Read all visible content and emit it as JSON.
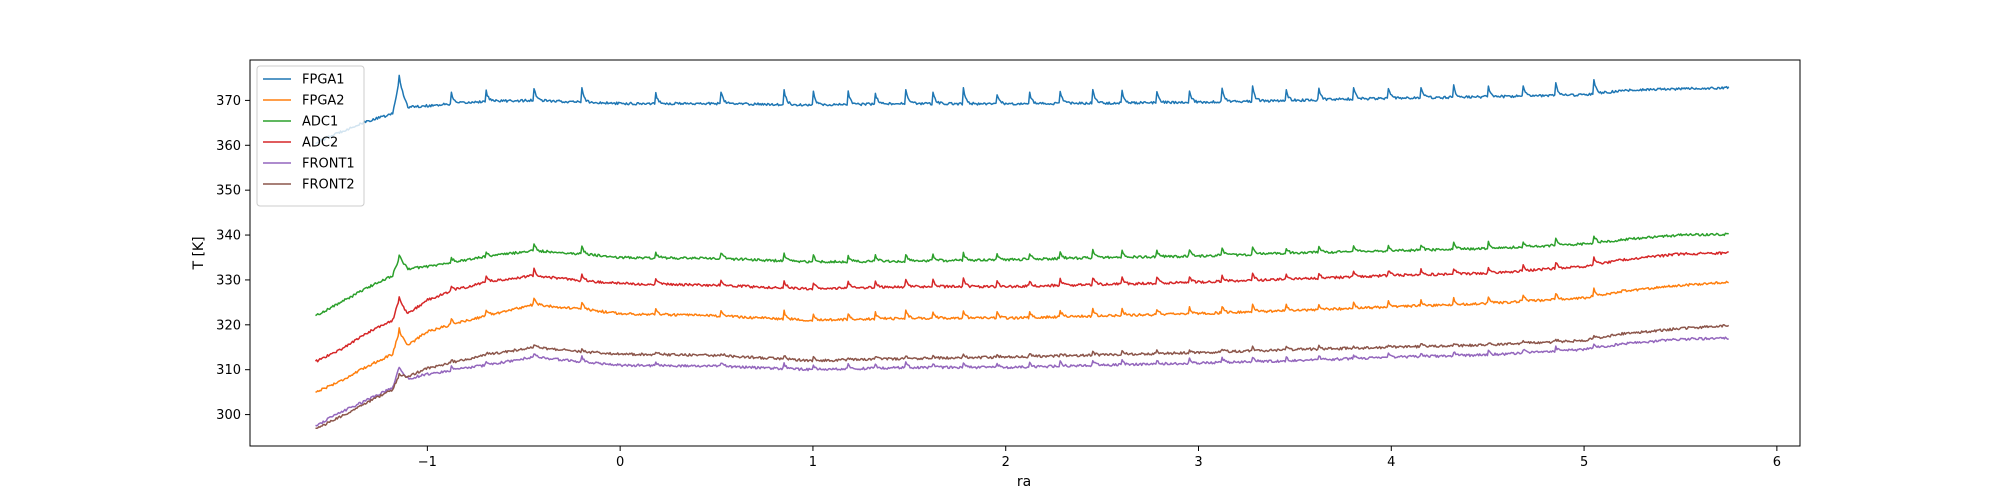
{
  "chart_data": {
    "type": "line",
    "title": "",
    "xlabel": "ra",
    "ylabel": "T [K]",
    "xlim": [
      -1.92,
      6.12
    ],
    "ylim": [
      293,
      379
    ],
    "xticks": [
      -1,
      0,
      1,
      2,
      3,
      4,
      5,
      6
    ],
    "xtick_labels": [
      "−1",
      "0",
      "1",
      "2",
      "3",
      "4",
      "5",
      "6"
    ],
    "yticks": [
      300,
      310,
      320,
      330,
      340,
      350,
      360,
      370
    ],
    "ytick_labels": [
      "300",
      "310",
      "320",
      "330",
      "340",
      "350",
      "360",
      "370"
    ],
    "grid": false,
    "legend_position": "top-left",
    "spike_x": [
      -1.15,
      -0.88,
      -0.7,
      -0.45,
      -0.2,
      0.18,
      0.52,
      0.85,
      1.0,
      1.18,
      1.32,
      1.48,
      1.62,
      1.78,
      1.95,
      2.12,
      2.28,
      2.45,
      2.6,
      2.78,
      2.95,
      3.12,
      3.28,
      3.45,
      3.62,
      3.8,
      3.98,
      4.15,
      4.32,
      4.5,
      4.68,
      4.85,
      5.05
    ],
    "series": [
      {
        "name": "FPGA1",
        "color": "#1f77b4",
        "spike": 3.5,
        "x": [
          -1.58,
          -1.45,
          -1.3,
          -1.18,
          -1.15,
          -1.1,
          -1.0,
          -0.88,
          -0.7,
          -0.45,
          -0.2,
          0.0,
          0.5,
          1.0,
          1.5,
          2.0,
          2.5,
          3.0,
          3.5,
          4.0,
          4.5,
          5.0,
          5.2,
          5.5,
          5.75
        ],
        "y": [
          360.5,
          363.0,
          365.5,
          367.0,
          373.5,
          368.5,
          368.8,
          369.2,
          369.8,
          370.0,
          369.6,
          369.3,
          369.3,
          369.0,
          369.3,
          369.2,
          369.4,
          369.6,
          370.0,
          370.5,
          370.8,
          371.2,
          372.2,
          372.6,
          372.8
        ]
      },
      {
        "name": "FPGA2",
        "color": "#ff7f0e",
        "spike": 1.8,
        "x": [
          -1.58,
          -1.45,
          -1.3,
          -1.18,
          -1.15,
          -1.1,
          -1.0,
          -0.88,
          -0.7,
          -0.45,
          -0.2,
          0.0,
          0.5,
          1.0,
          1.5,
          2.0,
          2.5,
          3.0,
          3.5,
          4.0,
          4.5,
          5.0,
          5.2,
          5.5,
          5.75
        ],
        "y": [
          305.0,
          307.5,
          311.0,
          313.5,
          318.0,
          315.5,
          318.5,
          320.0,
          322.0,
          324.5,
          323.5,
          322.5,
          322.0,
          321.0,
          321.5,
          321.5,
          322.0,
          322.5,
          323.2,
          324.0,
          324.8,
          326.0,
          327.5,
          328.8,
          329.5
        ]
      },
      {
        "name": "ADC1",
        "color": "#2ca02c",
        "spike": 1.8,
        "x": [
          -1.58,
          -1.45,
          -1.3,
          -1.18,
          -1.15,
          -1.1,
          -1.0,
          -0.88,
          -0.7,
          -0.45,
          -0.2,
          0.0,
          0.5,
          1.0,
          1.5,
          2.0,
          2.5,
          3.0,
          3.5,
          4.0,
          4.5,
          5.0,
          5.2,
          5.5,
          5.75
        ],
        "y": [
          322.0,
          325.0,
          328.5,
          331.0,
          334.5,
          332.5,
          333.0,
          333.8,
          335.2,
          336.5,
          335.8,
          335.0,
          334.8,
          334.0,
          334.2,
          334.5,
          335.0,
          335.3,
          336.0,
          336.5,
          337.0,
          338.0,
          339.0,
          340.0,
          340.2
        ]
      },
      {
        "name": "ADC2",
        "color": "#d62728",
        "spike": 1.8,
        "x": [
          -1.58,
          -1.45,
          -1.3,
          -1.18,
          -1.15,
          -1.1,
          -1.0,
          -0.88,
          -0.7,
          -0.45,
          -0.2,
          0.0,
          0.5,
          1.0,
          1.5,
          2.0,
          2.5,
          3.0,
          3.5,
          4.0,
          4.5,
          5.0,
          5.2,
          5.5,
          5.75
        ],
        "y": [
          311.8,
          314.5,
          318.5,
          321.0,
          325.0,
          322.5,
          325.5,
          327.5,
          329.5,
          331.0,
          329.8,
          329.2,
          328.8,
          328.0,
          328.5,
          328.5,
          329.0,
          329.5,
          330.2,
          331.0,
          331.5,
          333.0,
          334.5,
          335.8,
          336.0
        ]
      },
      {
        "name": "FRONT1",
        "color": "#9467bd",
        "spike": 1.2,
        "x": [
          -1.58,
          -1.45,
          -1.3,
          -1.18,
          -1.15,
          -1.1,
          -1.0,
          -0.88,
          -0.7,
          -0.45,
          -0.2,
          0.0,
          0.5,
          1.0,
          1.5,
          2.0,
          2.5,
          3.0,
          3.5,
          4.0,
          4.5,
          5.0,
          5.2,
          5.5,
          5.75
        ],
        "y": [
          297.5,
          300.5,
          303.5,
          306.0,
          310.0,
          308.0,
          309.0,
          309.8,
          311.0,
          312.8,
          311.8,
          311.0,
          310.8,
          310.0,
          310.5,
          310.5,
          311.0,
          311.5,
          312.0,
          312.8,
          313.3,
          314.5,
          315.8,
          316.8,
          317.0
        ]
      },
      {
        "name": "FRONT2",
        "color": "#8c564b",
        "spike": 0.8,
        "x": [
          -1.58,
          -1.45,
          -1.3,
          -1.18,
          -1.15,
          -1.1,
          -1.0,
          -0.88,
          -0.7,
          -0.45,
          -0.2,
          0.0,
          0.5,
          1.0,
          1.5,
          2.0,
          2.5,
          3.0,
          3.5,
          4.0,
          4.5,
          5.0,
          5.2,
          5.5,
          5.75
        ],
        "y": [
          296.8,
          299.5,
          303.0,
          305.5,
          308.5,
          308.5,
          310.3,
          311.5,
          313.2,
          315.0,
          314.0,
          313.5,
          313.2,
          312.0,
          312.5,
          312.8,
          313.3,
          313.8,
          314.5,
          315.0,
          315.5,
          316.5,
          318.0,
          319.2,
          319.8
        ]
      }
    ]
  }
}
